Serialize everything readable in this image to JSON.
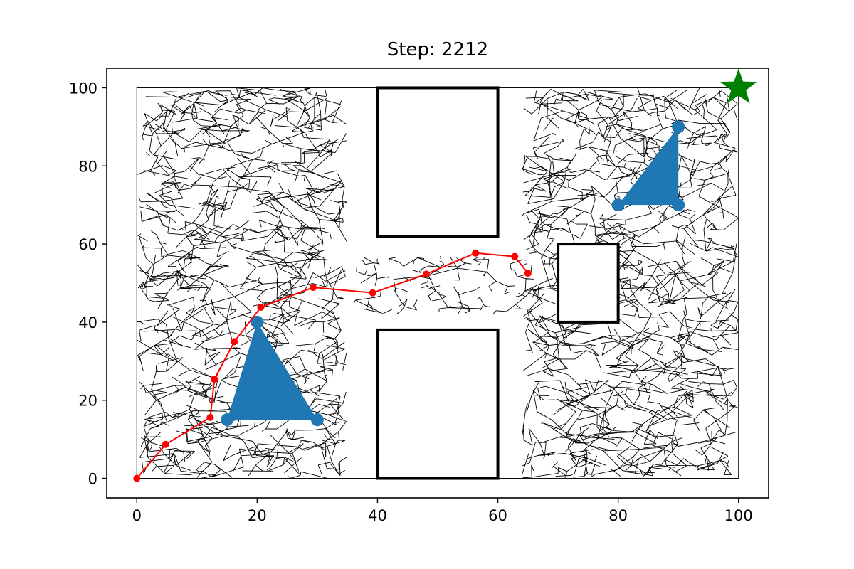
{
  "chart_data": {
    "type": "scatter",
    "title": "Step: 2212",
    "xlabel": "",
    "ylabel": "",
    "xlim": [
      -5,
      105
    ],
    "ylim": [
      -5,
      105
    ],
    "x_ticks": [
      0,
      20,
      40,
      60,
      80,
      100
    ],
    "y_ticks": [
      0,
      20,
      40,
      60,
      80,
      100
    ],
    "grid": false,
    "boundary": {
      "x": [
        0,
        100
      ],
      "y": [
        0,
        100
      ]
    },
    "obstacles": [
      {
        "x": [
          40,
          60
        ],
        "y": [
          62,
          100
        ]
      },
      {
        "x": [
          40,
          60
        ],
        "y": [
          0,
          38
        ]
      },
      {
        "x": [
          70,
          80
        ],
        "y": [
          40,
          60
        ]
      }
    ],
    "tree_regions": [
      {
        "x": [
          0,
          35
        ],
        "y": [
          0,
          100
        ]
      },
      {
        "x": [
          36,
          66
        ],
        "y": [
          42,
          57
        ]
      },
      {
        "x": [
          64,
          100
        ],
        "y": [
          0,
          100
        ]
      }
    ],
    "path": {
      "color": "#ff0000",
      "points": [
        [
          0,
          0
        ],
        [
          4.8,
          8.7
        ],
        [
          12.2,
          15.6
        ],
        [
          12.9,
          25.4
        ],
        [
          16.2,
          35
        ],
        [
          20.6,
          43.8
        ],
        [
          29.3,
          48.9
        ],
        [
          39.2,
          47.5
        ],
        [
          48.1,
          52.3
        ],
        [
          56.3,
          57.7
        ],
        [
          62.8,
          56.8
        ],
        [
          65,
          52.5
        ]
      ]
    },
    "triangles": [
      {
        "color": "#1f77b4",
        "vertices": [
          [
            15,
            15
          ],
          [
            30,
            15
          ],
          [
            20,
            40
          ]
        ]
      },
      {
        "color": "#1f77b4",
        "vertices": [
          [
            80,
            70
          ],
          [
            90,
            70
          ],
          [
            90,
            90
          ]
        ]
      }
    ],
    "goal": {
      "x": 100,
      "y": 100,
      "marker": "star",
      "color": "#008000"
    },
    "tree_color": "#000000",
    "obstacle_color": "#000000"
  }
}
